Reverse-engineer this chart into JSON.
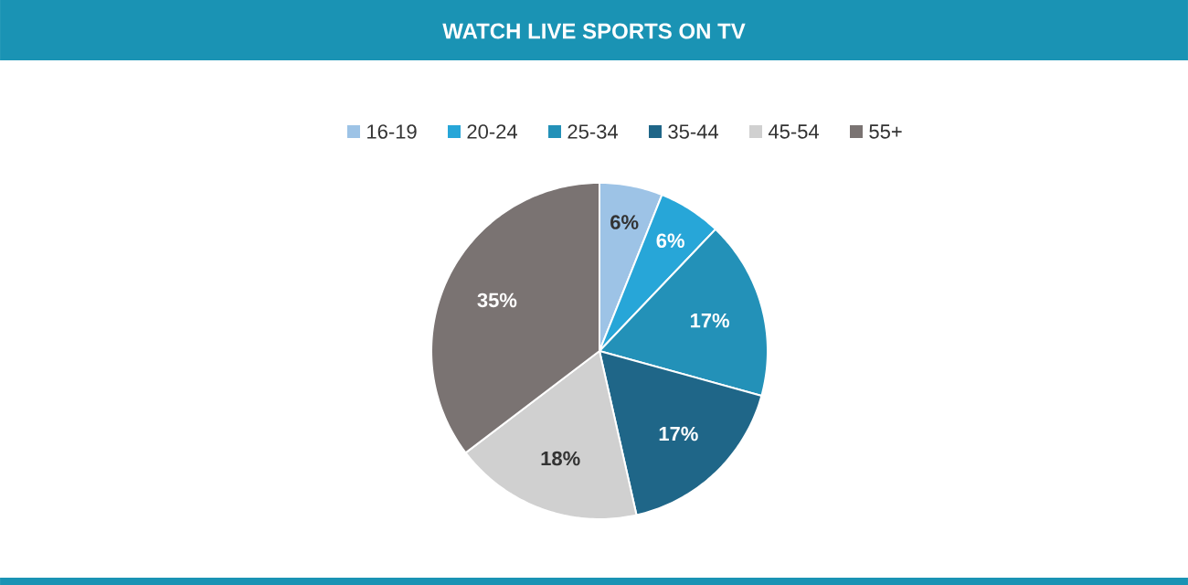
{
  "chart_data": {
    "type": "pie",
    "title": "WATCH LIVE SPORTS ON TV",
    "categories": [
      "16-19",
      "20-24",
      "25-34",
      "35-44",
      "45-54",
      "55+"
    ],
    "values": [
      6,
      6,
      17,
      17,
      18,
      35
    ],
    "colors": [
      "#9dc3e6",
      "#27a6d8",
      "#2391b8",
      "#1f6688",
      "#d0d0d0",
      "#7a7372"
    ],
    "value_labels": [
      "6%",
      "6%",
      "17%",
      "17%",
      "18%",
      "35%"
    ],
    "legend": "top"
  }
}
